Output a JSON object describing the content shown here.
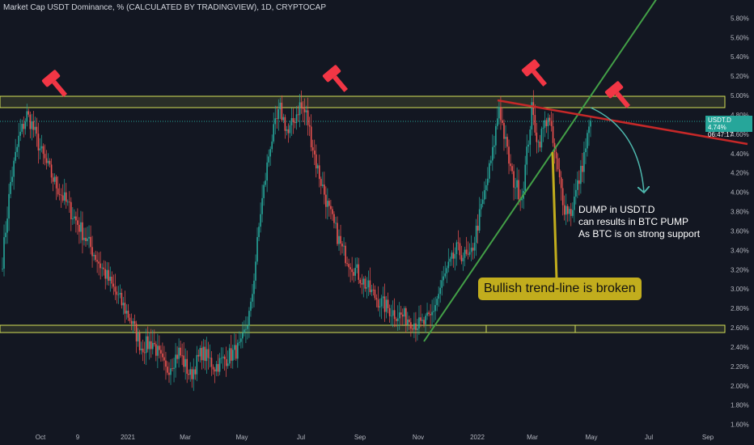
{
  "header": {
    "title": "Market Cap USDT Dominance, % (CALCULATED BY TRADINGVIEW), 1D, CRYPTOCAP"
  },
  "price_badge": {
    "symbol": "USDT.D",
    "value": "4.74%",
    "countdown": "06:47:17"
  },
  "annotations": {
    "callout": "Bullish trend-line is broken",
    "note_lines": [
      "DUMP in USDT.D",
      "can results in BTC PUMP",
      "As BTC is on strong support"
    ]
  },
  "colors": {
    "background": "#131722",
    "up": "#26a69a",
    "down": "#ef5350",
    "zone": "#d4e157",
    "trendline_support": "#43a047",
    "trendline_resistance": "#c62828",
    "arrow": "#4db6ac",
    "hammer": "#f23645",
    "callout": "#c2ad1d"
  },
  "icons": [
    "hammer-icon",
    "hammer-icon",
    "hammer-icon",
    "hammer-icon"
  ],
  "chart_data": {
    "type": "candlestick",
    "symbol": "USDT.D",
    "interval": "1D",
    "y_unit": "%",
    "ylim": [
      1.6,
      5.9
    ],
    "y_ticks": [
      "5.80%",
      "5.60%",
      "5.40%",
      "5.20%",
      "5.00%",
      "4.80%",
      "4.60%",
      "4.40%",
      "4.20%",
      "4.00%",
      "3.80%",
      "3.60%",
      "3.40%",
      "3.20%",
      "3.00%",
      "2.80%",
      "2.60%",
      "2.40%",
      "2.20%",
      "2.00%",
      "1.80%",
      "1.60%"
    ],
    "x_ticks": [
      "Oct",
      "9",
      "2021",
      "Mar",
      "May",
      "Jul",
      "Sep",
      "Nov",
      "2022",
      "Mar",
      "May",
      "Jul",
      "Sep"
    ],
    "last_value": 4.74,
    "grid": false,
    "horizontal_zones": [
      {
        "name": "resistance",
        "from": 4.85,
        "to": 4.99
      },
      {
        "name": "support",
        "from": 2.55,
        "to": 2.63
      }
    ],
    "trendlines": [
      {
        "name": "bullish-trend-line",
        "points": [
          [
            0,
            2.47
          ],
          [
            1,
            6.02
          ]
        ]
      },
      {
        "name": "descending-resistance",
        "points": [
          [
            0,
            4.93
          ],
          [
            1,
            4.48
          ]
        ]
      }
    ],
    "anchors": [
      {
        "i": 0,
        "v": 3.3
      },
      {
        "i": 5,
        "v": 4.1
      },
      {
        "i": 10,
        "v": 4.55
      },
      {
        "i": 15,
        "v": 4.8
      },
      {
        "i": 18,
        "v": 4.7
      },
      {
        "i": 24,
        "v": 4.4
      },
      {
        "i": 32,
        "v": 4.1
      },
      {
        "i": 42,
        "v": 3.8
      },
      {
        "i": 55,
        "v": 3.4
      },
      {
        "i": 68,
        "v": 3.0
      },
      {
        "i": 78,
        "v": 2.7
      },
      {
        "i": 85,
        "v": 2.4
      },
      {
        "i": 92,
        "v": 2.45
      },
      {
        "i": 100,
        "v": 2.15
      },
      {
        "i": 108,
        "v": 2.35
      },
      {
        "i": 115,
        "v": 2.1
      },
      {
        "i": 122,
        "v": 2.35
      },
      {
        "i": 130,
        "v": 2.2
      },
      {
        "i": 138,
        "v": 2.3
      },
      {
        "i": 146,
        "v": 2.4
      },
      {
        "i": 152,
        "v": 2.8
      },
      {
        "i": 158,
        "v": 3.8
      },
      {
        "i": 164,
        "v": 4.5
      },
      {
        "i": 170,
        "v": 4.85
      },
      {
        "i": 175,
        "v": 4.6
      },
      {
        "i": 182,
        "v": 4.9
      },
      {
        "i": 186,
        "v": 4.8
      },
      {
        "i": 192,
        "v": 4.3
      },
      {
        "i": 200,
        "v": 3.8
      },
      {
        "i": 208,
        "v": 3.4
      },
      {
        "i": 216,
        "v": 3.2
      },
      {
        "i": 224,
        "v": 3.0
      },
      {
        "i": 232,
        "v": 2.85
      },
      {
        "i": 240,
        "v": 2.75
      },
      {
        "i": 248,
        "v": 2.7
      },
      {
        "i": 256,
        "v": 2.62
      },
      {
        "i": 262,
        "v": 2.7
      },
      {
        "i": 270,
        "v": 3.1
      },
      {
        "i": 278,
        "v": 3.4
      },
      {
        "i": 286,
        "v": 3.3
      },
      {
        "i": 294,
        "v": 3.9
      },
      {
        "i": 300,
        "v": 4.4
      },
      {
        "i": 304,
        "v": 4.9
      },
      {
        "i": 308,
        "v": 4.5
      },
      {
        "i": 312,
        "v": 4.15
      },
      {
        "i": 318,
        "v": 3.95
      },
      {
        "i": 324,
        "v": 4.85
      },
      {
        "i": 328,
        "v": 4.5
      },
      {
        "i": 334,
        "v": 4.8
      },
      {
        "i": 340,
        "v": 4.2
      },
      {
        "i": 344,
        "v": 3.85
      },
      {
        "i": 348,
        "v": 3.8
      },
      {
        "i": 354,
        "v": 4.2
      },
      {
        "i": 360,
        "v": 4.74
      }
    ]
  }
}
